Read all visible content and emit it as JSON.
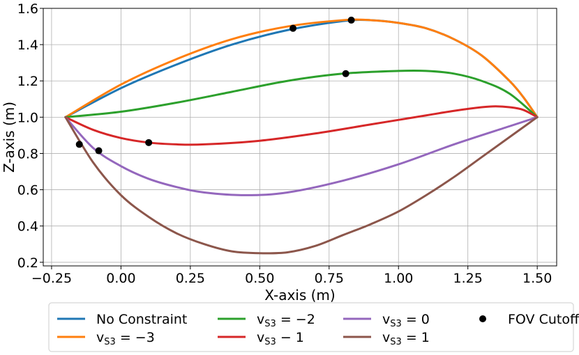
{
  "chart_data": {
    "type": "line",
    "title": "",
    "xlabel": "X-axis (m)",
    "ylabel": "Z-axis (m)",
    "xlim": [
      -0.28,
      1.57
    ],
    "ylim": [
      0.18,
      1.6
    ],
    "grid": true,
    "legend_position": "bottom",
    "xticks": [
      -0.25,
      0.0,
      0.25,
      0.5,
      0.75,
      1.0,
      1.25,
      1.5
    ],
    "xtick_labels": [
      "−0.25",
      "0.00",
      "0.25",
      "0.50",
      "0.75",
      "1.00",
      "1.25",
      "1.50"
    ],
    "yticks": [
      0.2,
      0.4,
      0.6,
      0.8,
      1.0,
      1.2,
      1.4,
      1.6
    ],
    "ytick_labels": [
      "0.2",
      "0.4",
      "0.6",
      "0.8",
      "1.0",
      "1.2",
      "1.4",
      "1.6"
    ],
    "series": [
      {
        "name": "No Constraint",
        "legend_label": "No Constraint",
        "color": "#1f77b4",
        "x": [
          -0.2,
          0.0,
          0.2,
          0.4,
          0.6,
          0.8,
          0.9,
          1.0,
          1.1,
          1.2,
          1.3,
          1.4,
          1.45,
          1.5
        ],
        "y": [
          1.0,
          1.16,
          1.29,
          1.4,
          1.48,
          1.53,
          1.535,
          1.52,
          1.49,
          1.43,
          1.34,
          1.2,
          1.11,
          1.0
        ]
      },
      {
        "name": "v_S3 = -3",
        "legend_label": "v",
        "legend_sub": "S3",
        "legend_rhs": " = −3",
        "color": "#ff7f0e",
        "x": [
          -0.2,
          0.0,
          0.2,
          0.4,
          0.6,
          0.8,
          0.9,
          1.0,
          1.1,
          1.2,
          1.3,
          1.4,
          1.45,
          1.5
        ],
        "y": [
          1.0,
          1.18,
          1.32,
          1.43,
          1.5,
          1.535,
          1.535,
          1.52,
          1.49,
          1.43,
          1.34,
          1.2,
          1.11,
          1.0
        ]
      },
      {
        "name": "v_S3 = -2",
        "legend_label": "v",
        "legend_sub": "S3",
        "legend_rhs": " = −2",
        "color": "#2ca02c",
        "x": [
          -0.2,
          0.0,
          0.2,
          0.4,
          0.6,
          0.8,
          1.0,
          1.1,
          1.2,
          1.3,
          1.4,
          1.5
        ],
        "y": [
          1.0,
          1.03,
          1.08,
          1.14,
          1.2,
          1.24,
          1.255,
          1.255,
          1.24,
          1.2,
          1.13,
          1.0
        ]
      },
      {
        "name": "v_S3 - 1",
        "legend_label": "v",
        "legend_sub": "S3",
        "legend_rhs": " − 1",
        "color": "#d62728",
        "x": [
          -0.2,
          -0.1,
          0.0,
          0.1,
          0.2,
          0.3,
          0.5,
          0.7,
          0.9,
          1.1,
          1.2,
          1.3,
          1.35,
          1.4,
          1.45,
          1.5
        ],
        "y": [
          1.0,
          0.93,
          0.885,
          0.86,
          0.85,
          0.85,
          0.87,
          0.91,
          0.96,
          1.01,
          1.035,
          1.055,
          1.06,
          1.055,
          1.04,
          1.0
        ]
      },
      {
        "name": "v_S3 = 0",
        "legend_label": "v",
        "legend_sub": "S3",
        "legend_rhs": " = 0",
        "color": "#9467bd",
        "x": [
          -0.2,
          -0.1,
          0.0,
          0.1,
          0.2,
          0.3,
          0.45,
          0.6,
          0.8,
          1.0,
          1.2,
          1.4,
          1.5
        ],
        "y": [
          1.0,
          0.83,
          0.73,
          0.66,
          0.615,
          0.585,
          0.57,
          0.585,
          0.65,
          0.74,
          0.85,
          0.95,
          1.0
        ]
      },
      {
        "name": "v_S3 = 1",
        "legend_label": "v",
        "legend_sub": "S3",
        "legend_rhs": " = 1",
        "color": "#8c564b",
        "x": [
          -0.2,
          -0.1,
          0.0,
          0.1,
          0.2,
          0.3,
          0.4,
          0.5,
          0.6,
          0.7,
          0.8,
          0.9,
          1.0,
          1.1,
          1.2,
          1.3,
          1.4,
          1.5
        ],
        "y": [
          1.0,
          0.75,
          0.57,
          0.45,
          0.36,
          0.3,
          0.26,
          0.25,
          0.255,
          0.29,
          0.35,
          0.41,
          0.48,
          0.57,
          0.67,
          0.78,
          0.89,
          1.0
        ]
      }
    ],
    "fov_cutoff": {
      "name": "FOV Cutoff",
      "color": "#000000",
      "points": [
        {
          "x": 0.62,
          "y": 1.49
        },
        {
          "x": 0.83,
          "y": 1.535
        },
        {
          "x": 0.81,
          "y": 1.24
        },
        {
          "x": 0.1,
          "y": 0.86
        },
        {
          "x": -0.15,
          "y": 0.85
        },
        {
          "x": -0.08,
          "y": 0.815
        }
      ]
    }
  }
}
